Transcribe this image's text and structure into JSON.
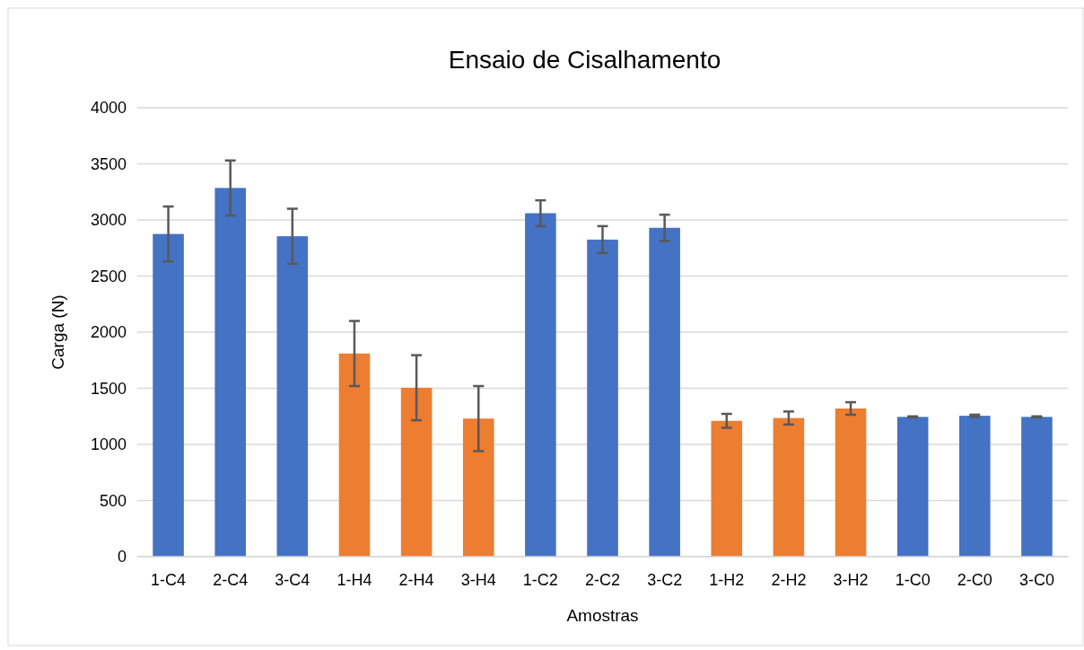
{
  "chart_data": {
    "type": "bar",
    "title": "Ensaio de Cisalhamento",
    "xlabel": "Amostras",
    "ylabel": "Carga (N)",
    "categories": [
      "1-C4",
      "2-C4",
      "3-C4",
      "1-H4",
      "2-H4",
      "3-H4",
      "1-C2",
      "2-C2",
      "3-C2",
      "1-H2",
      "2-H2",
      "3-H2",
      "1-C0",
      "2-C0",
      "3-C0"
    ],
    "values": [
      2875,
      3285,
      2855,
      1810,
      1505,
      1230,
      3060,
      2825,
      2930,
      1210,
      1235,
      1320,
      1245,
      1255,
      1245
    ],
    "errors": [
      245,
      245,
      245,
      290,
      290,
      290,
      115,
      120,
      117,
      62,
      58,
      56,
      5,
      10,
      5
    ],
    "colors": [
      "#4472c4",
      "#4472c4",
      "#4472c4",
      "#ed7d31",
      "#ed7d31",
      "#ed7d31",
      "#4472c4",
      "#4472c4",
      "#4472c4",
      "#ed7d31",
      "#ed7d31",
      "#ed7d31",
      "#4472c4",
      "#4472c4",
      "#4472c4"
    ],
    "ylim": [
      0,
      4000
    ],
    "yticks": [
      0,
      500,
      1000,
      1500,
      2000,
      2500,
      3000,
      3500,
      4000
    ],
    "grid": "y"
  }
}
